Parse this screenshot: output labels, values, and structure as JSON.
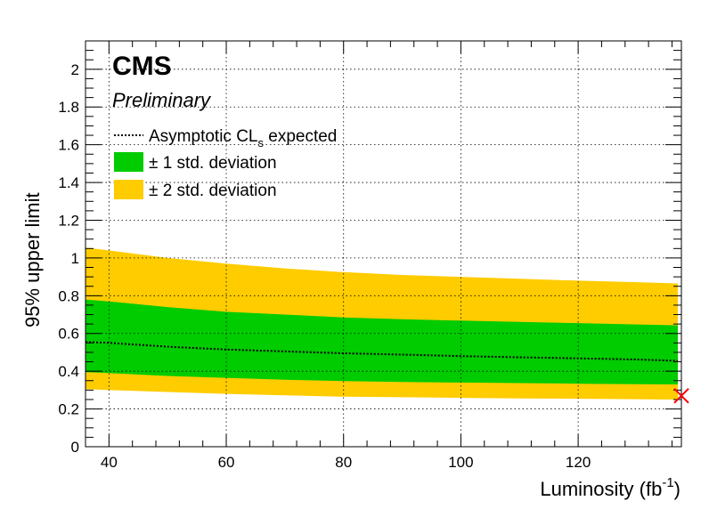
{
  "chart_data": {
    "type": "area",
    "xlabel": "Luminosity (fb",
    "xlabel_superscript": "-1",
    "xlabel_close": ")",
    "ylabel": "95% upper limit",
    "xlim": [
      36,
      137.6
    ],
    "ylim": [
      0,
      2.15
    ],
    "x_ticks": [
      40,
      60,
      80,
      100,
      120
    ],
    "x_tick_labels": [
      "40",
      "60",
      "80",
      "100",
      "120"
    ],
    "y_ticks": [
      0,
      0.2,
      0.4,
      0.6,
      0.8,
      1.0,
      1.2,
      1.4,
      1.6,
      1.8,
      2.0
    ],
    "y_tick_labels": [
      "0",
      "0.2",
      "0.4",
      "0.6",
      "0.8",
      "1",
      "1.2",
      "1.4",
      "1.6",
      "1.8",
      "2"
    ],
    "grid": true,
    "experiment_label": "CMS",
    "status_label": "Preliminary",
    "legend": {
      "placement": "top-left",
      "entries": [
        {
          "label": "Asymptotic CL",
          "subscript": "s",
          "suffix": " expected",
          "style": "dotted-line",
          "color": "#000000"
        },
        {
          "label": "± 1 std. deviation",
          "style": "fill",
          "color": "#00cc00"
        },
        {
          "label": "± 2 std. deviation",
          "style": "fill",
          "color": "#ffcc00"
        }
      ]
    },
    "x": [
      36,
      40,
      50,
      60,
      70,
      80,
      90,
      100,
      110,
      120,
      130,
      137
    ],
    "series": [
      {
        "role": "expected",
        "values": [
          0.555,
          0.55,
          0.53,
          0.515,
          0.505,
          0.495,
          0.488,
          0.48,
          0.474,
          0.468,
          0.462,
          0.455
        ]
      },
      {
        "role": "minus1",
        "values": [
          0.395,
          0.39,
          0.375,
          0.365,
          0.355,
          0.348,
          0.343,
          0.34,
          0.337,
          0.334,
          0.331,
          0.33
        ]
      },
      {
        "role": "plus1",
        "values": [
          0.78,
          0.77,
          0.74,
          0.715,
          0.7,
          0.685,
          0.675,
          0.668,
          0.661,
          0.655,
          0.648,
          0.643
        ]
      },
      {
        "role": "minus2",
        "values": [
          0.305,
          0.3,
          0.29,
          0.28,
          0.272,
          0.265,
          0.262,
          0.259,
          0.256,
          0.254,
          0.252,
          0.25
        ]
      },
      {
        "role": "plus2",
        "values": [
          1.055,
          1.04,
          1.0,
          0.97,
          0.945,
          0.925,
          0.91,
          0.9,
          0.89,
          0.88,
          0.872,
          0.865
        ]
      }
    ],
    "observed_marker": {
      "x": 137.6,
      "y": 0.27,
      "symbol": "cross",
      "color": "#ff0000"
    }
  }
}
